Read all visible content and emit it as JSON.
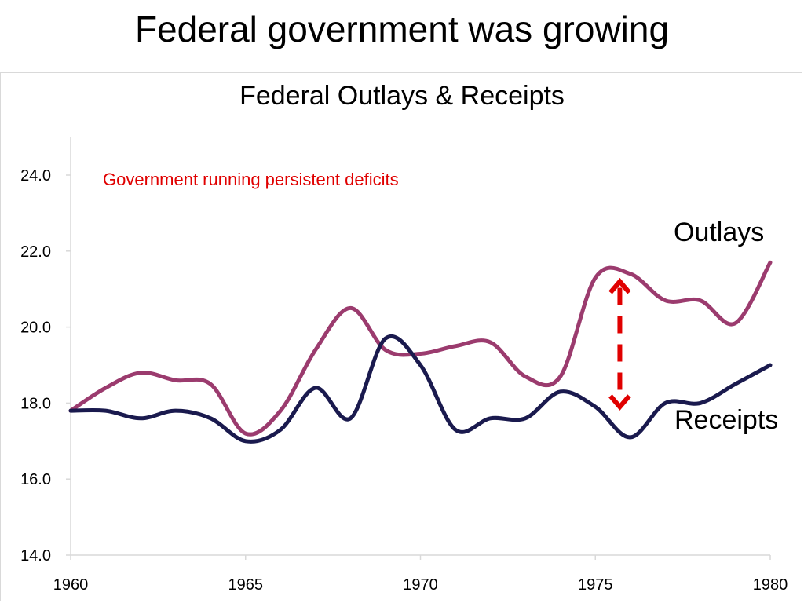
{
  "slide": {
    "title": "Federal government was growing"
  },
  "chart_data": {
    "type": "line",
    "title": "Federal Outlays & Receipts",
    "xlabel": "",
    "ylabel": "",
    "xlim": [
      1960,
      1980
    ],
    "ylim": [
      14,
      25
    ],
    "x_ticks": [
      "1960",
      "1965",
      "1970",
      "1975",
      "1980"
    ],
    "y_ticks": [
      "14.0",
      "16.0",
      "18.0",
      "20.0",
      "22.0",
      "24.0"
    ],
    "grid": false,
    "x": [
      1960,
      1961,
      1962,
      1963,
      1964,
      1965,
      1966,
      1967,
      1968,
      1969,
      1970,
      1971,
      1972,
      1973,
      1974,
      1975,
      1976,
      1977,
      1978,
      1979,
      1980
    ],
    "series": [
      {
        "name": "Outlays",
        "color": "#9b3b6e",
        "values": [
          17.8,
          18.4,
          18.8,
          18.6,
          18.5,
          17.2,
          17.8,
          19.4,
          20.5,
          19.4,
          19.3,
          19.5,
          19.6,
          18.7,
          18.7,
          21.3,
          21.4,
          20.7,
          20.7,
          20.1,
          21.7
        ]
      },
      {
        "name": "Receipts",
        "color": "#1a1a4e",
        "values": [
          17.8,
          17.8,
          17.6,
          17.8,
          17.6,
          17.0,
          17.3,
          18.4,
          17.6,
          19.7,
          19.0,
          17.3,
          17.6,
          17.6,
          18.3,
          17.9,
          17.1,
          18.0,
          18.0,
          18.5,
          19.0
        ]
      }
    ],
    "annotations": [
      {
        "text": "Government running persistent deficits",
        "color": "#e00000"
      }
    ],
    "deficit_arrow": {
      "x": 1975.7,
      "y_top": 21.2,
      "y_bottom": 17.9,
      "color": "#e00000"
    }
  }
}
